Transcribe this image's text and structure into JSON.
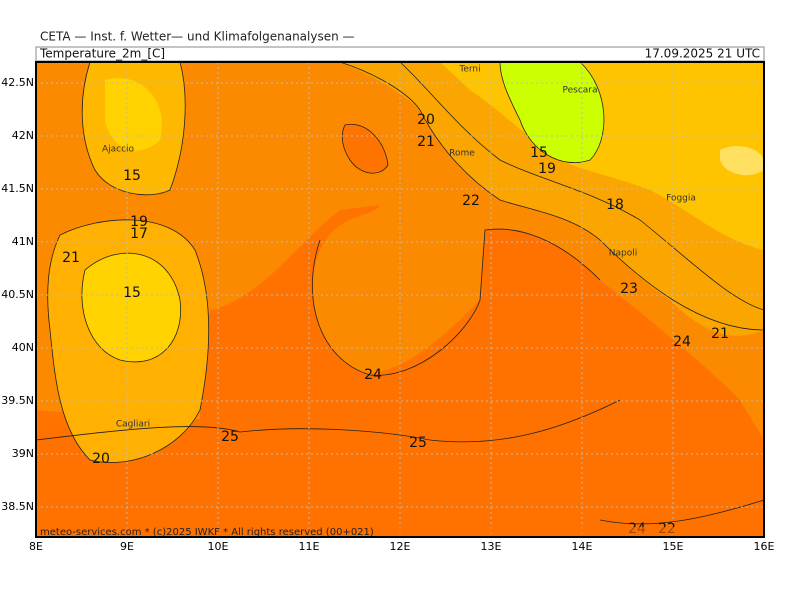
{
  "header": {
    "title": "CETA — Inst. f. Wetter— und Klimafolgenanalysen —",
    "field": "Temperature_2m_[C]",
    "time": "17.09.2025 21 UTC"
  },
  "map": {
    "lat_labels": [
      "42.5N",
      "42N",
      "41.5N",
      "41N",
      "40.5N",
      "40N",
      "39.5N",
      "39N",
      "38.5N"
    ],
    "lon_labels": [
      "8E",
      "9E",
      "10E",
      "11E",
      "12E",
      "13E",
      "14E",
      "15E",
      "16E"
    ],
    "cities": [
      "Terni",
      "Pescara",
      "Ajaccio",
      "Rome",
      "Foggia",
      "Napoli",
      "Cagliari"
    ],
    "contour_labels": [
      "15",
      "19",
      "17",
      "21",
      "15",
      "20",
      "21",
      "15",
      "19",
      "18",
      "22",
      "23",
      "24",
      "21",
      "24",
      "25",
      "25",
      "20",
      "24",
      "22"
    ]
  },
  "footer": "meteo-services.com * (c)2025 IWKF * All rights reserved (00+021)"
}
